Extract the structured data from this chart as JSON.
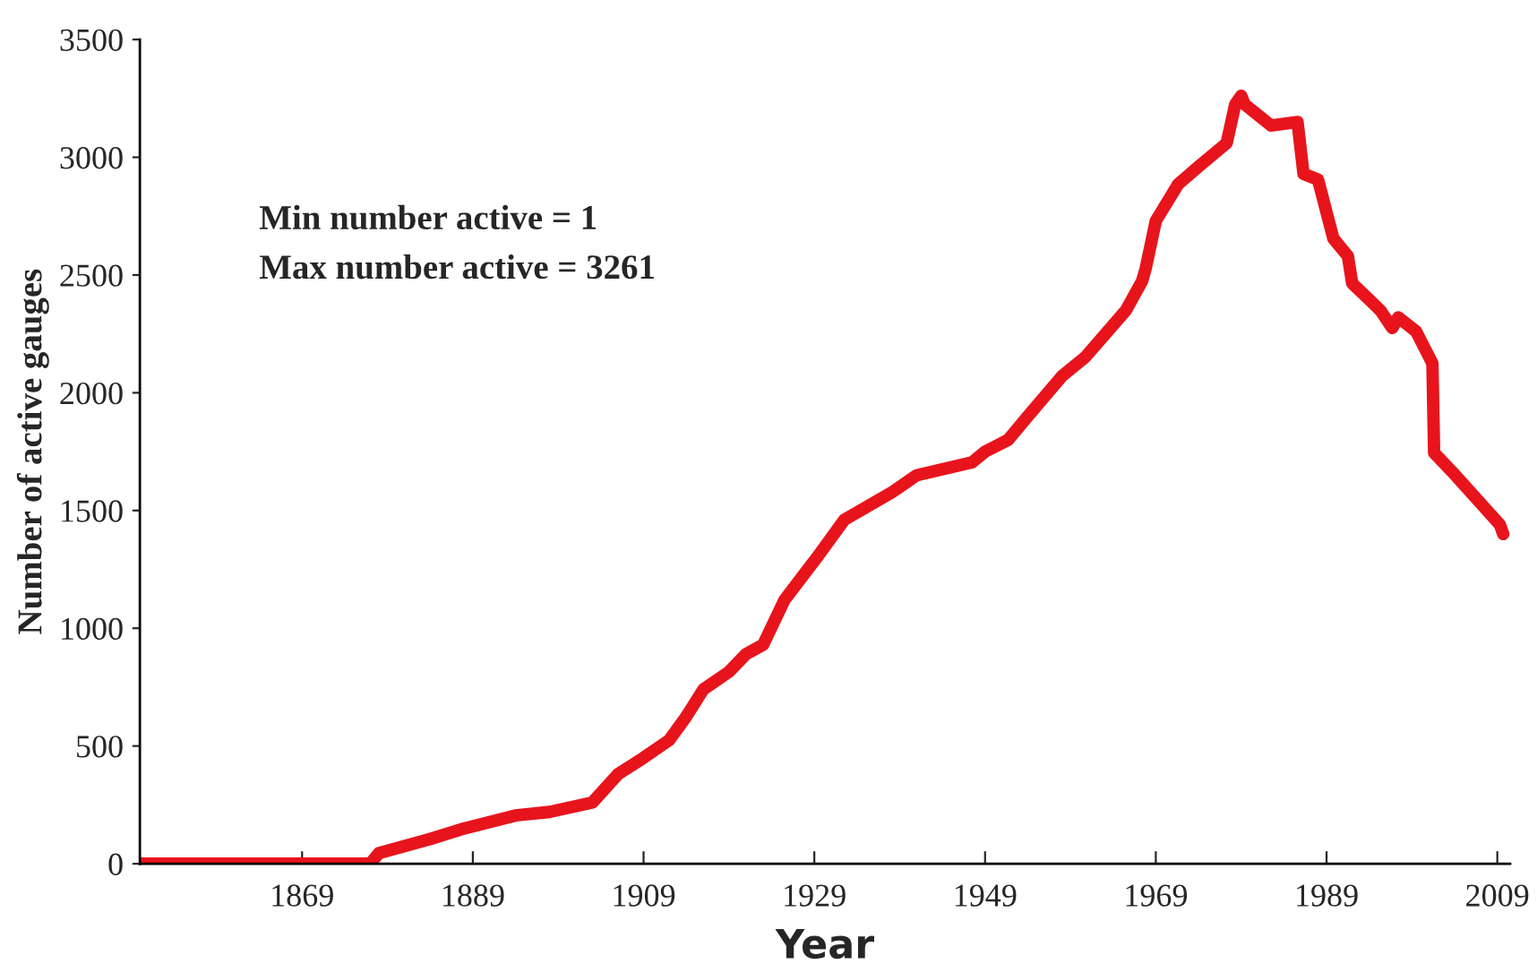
{
  "chart_data": {
    "type": "line",
    "xlabel": "Year",
    "ylabel": "Number of active gauges",
    "annotations": [
      "Min number active = 1",
      "Max number active = 3261"
    ],
    "x": [
      1850,
      1877,
      1878,
      1884,
      1888,
      1894,
      1898,
      1903,
      1906,
      1909,
      1912,
      1914,
      1916,
      1919,
      1921,
      1923,
      1925.5,
      1929.5,
      1932.5,
      1938,
      1941,
      1947.5,
      1949,
      1951.7,
      1954,
      1958,
      1960.7,
      1965.5,
      1967.4,
      1967.8,
      1969,
      1971.6,
      1974,
      1977.3,
      1978.3,
      1979,
      1979.4,
      1982.5,
      1985.6,
      1986.3,
      1988,
      1989.8,
      1991.5,
      1992,
      1995.3,
      1996.7,
      1997.4,
      1999.5,
      2001.4,
      2001.6,
      2003.7,
      2009.3,
      2009.7
    ],
    "series": [
      {
        "color": "#e8141c",
        "values": [
          1,
          1,
          45,
          105,
          150,
          205,
          220,
          260,
          380,
          450,
          525,
          625,
          740,
          815,
          890,
          930,
          1120,
          1310,
          1460,
          1575,
          1650,
          1705,
          1750,
          1800,
          1900,
          2070,
          2150,
          2350,
          2475,
          2525,
          2730,
          2885,
          2960,
          3060,
          3225,
          3261,
          3225,
          3135,
          3150,
          2930,
          2905,
          2655,
          2580,
          2465,
          2350,
          2275,
          2320,
          2260,
          2125,
          1745,
          1665,
          1440,
          1400
        ]
      }
    ],
    "xlim": [
      1850,
      2010.5
    ],
    "xticks": [
      1869,
      1889,
      1909,
      1929,
      1949,
      1969,
      1989,
      2009
    ],
    "ylim": [
      0,
      3500
    ],
    "yticks": [
      0,
      500,
      1000,
      1500,
      2000,
      2500,
      3000,
      3500
    ],
    "grid": false,
    "legend": false,
    "marker": "none",
    "line_style": "solid"
  }
}
